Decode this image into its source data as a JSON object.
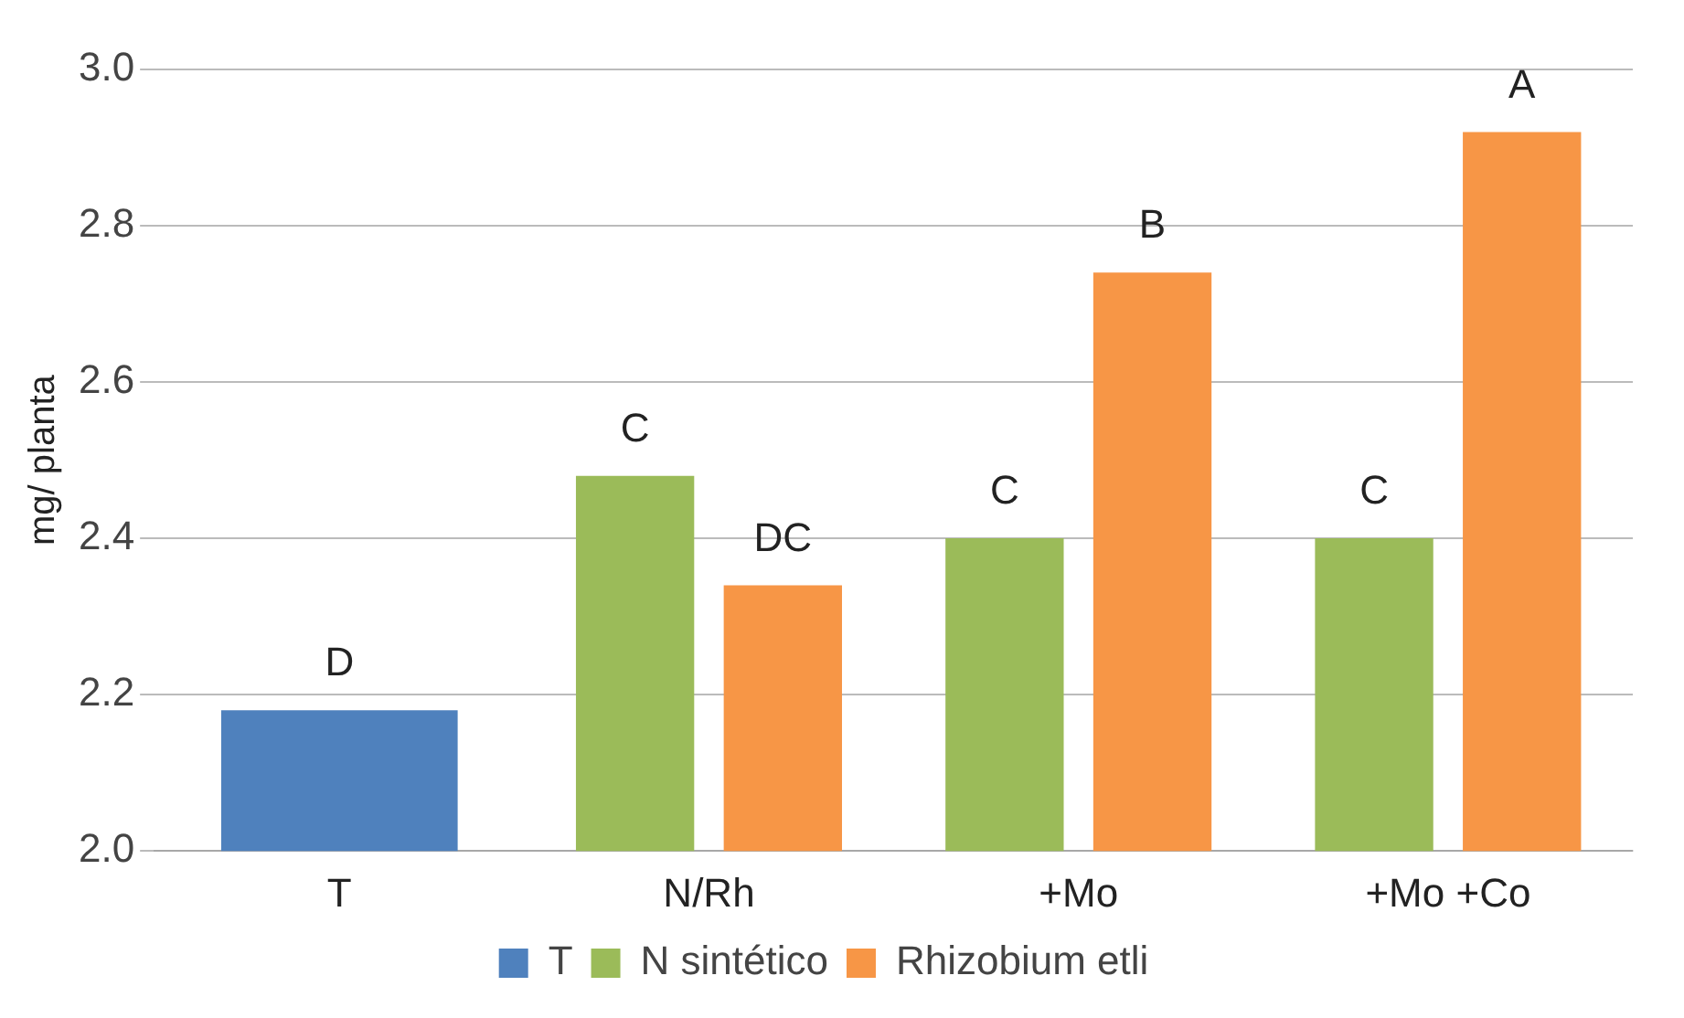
{
  "chart_data": {
    "type": "bar",
    "ylabel": "mg/ planta",
    "categories": [
      "T",
      "N/Rh",
      "+Mo",
      "+Mo +Co"
    ],
    "series": [
      {
        "name": "T",
        "color": "#4f81bd",
        "values": [
          2.18,
          null,
          null,
          null
        ],
        "value_labels": [
          "D",
          null,
          null,
          null
        ]
      },
      {
        "name": "N sintético",
        "color": "#9bbb59",
        "values": [
          null,
          2.48,
          2.4,
          2.4
        ],
        "value_labels": [
          null,
          "C",
          "C",
          "C"
        ]
      },
      {
        "name": "Rhizobium etli",
        "color": "#f79646",
        "values": [
          null,
          2.34,
          2.74,
          2.92
        ],
        "value_labels": [
          null,
          "DC",
          "B",
          "A"
        ]
      }
    ],
    "ylim": [
      2.0,
      3.0
    ],
    "yticks": [
      {
        "value": 2,
        "label": "2.0"
      },
      {
        "value": 2.2,
        "label": "2.2"
      },
      {
        "value": 2.4,
        "label": "2.4"
      },
      {
        "value": 2.6,
        "label": "2.6"
      },
      {
        "value": 2.8,
        "label": "2.8"
      },
      {
        "value": 3,
        "label": "3.0"
      }
    ],
    "grid": "y",
    "legend": "bottom"
  }
}
